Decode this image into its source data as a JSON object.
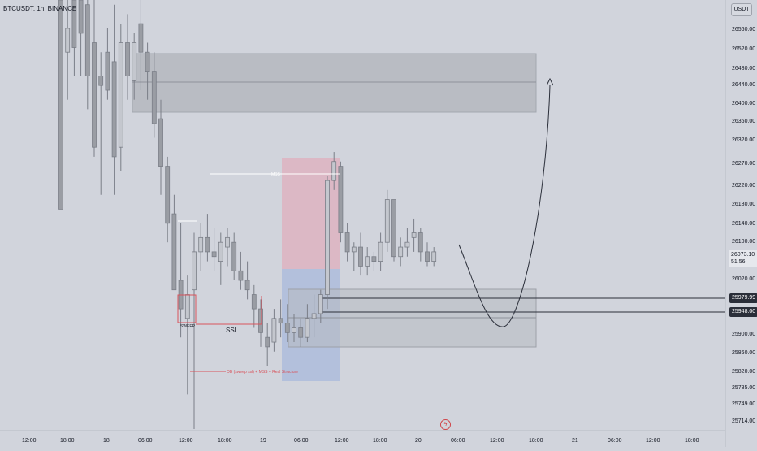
{
  "header": {
    "symbol_line": "BTCUSDT, 1h, BINANCE",
    "currency_button": "USDT"
  },
  "price_axis": {
    "labels": [
      "26560.00",
      "26520.00",
      "26480.00",
      "26440.00",
      "26400.00",
      "26360.00",
      "26320.00",
      "26270.00",
      "26220.00",
      "26180.00",
      "26140.00",
      "26100.00",
      "26020.00",
      "25900.00",
      "25860.00",
      "25820.00",
      "25785.00",
      "25749.00",
      "25714.00"
    ],
    "last_price": "26073.10",
    "countdown": "51:56",
    "tag_upper": "25979.99",
    "tag_lower": "25948.00"
  },
  "time_axis": {
    "labels": [
      "12:00",
      "18:00",
      "18",
      "06:00",
      "12:00",
      "18:00",
      "19",
      "06:00",
      "12:00",
      "18:00",
      "20",
      "06:00",
      "12:00",
      "18:00",
      "21",
      "06:00",
      "12:00",
      "18:00"
    ]
  },
  "annotations": {
    "sweep": "SWEEP",
    "ssl": "SSL",
    "mss": "MSS",
    "ob_note": "OB (sweep ssl) + MSS + Real Structure"
  },
  "colors": {
    "background": "#d1d4dc",
    "candle_fill": "#c4c7ce",
    "candle_border": "#7a7e87",
    "candle_dark": "#9a9da4",
    "risk_zone": "#e6a1b3",
    "reward_zone": "#9fb2dc",
    "annotation_red": "#d9535b",
    "axis_text": "#131722"
  },
  "candles": [
    [
      26800,
      26200,
      26720,
      26280
    ],
    [
      26900,
      26400,
      26500,
      26550
    ],
    [
      26750,
      26450,
      26700,
      26600
    ],
    [
      26700,
      26450,
      26650,
      26580
    ],
    [
      26680,
      26380,
      26600,
      26450
    ],
    [
      26650,
      26280,
      26520,
      26300
    ],
    [
      26500,
      26200,
      26450,
      26430
    ],
    [
      26550,
      26400,
      26500,
      26420
    ],
    [
      26600,
      26200,
      26480,
      26280
    ],
    [
      26560,
      26250,
      26300,
      26520
    ],
    [
      26580,
      26400,
      26520,
      26450
    ],
    [
      26540,
      26400,
      26440,
      26520
    ],
    [
      26700,
      26420,
      26560,
      26500
    ],
    [
      26520,
      26400,
      26500,
      26460
    ],
    [
      26500,
      26320,
      26460,
      26350
    ],
    [
      26400,
      26200,
      26360,
      26260
    ],
    [
      26280,
      26100,
      26260,
      26140
    ],
    [
      26200,
      26010,
      26160,
      26000
    ],
    [
      26140,
      25900,
      26020,
      25960
    ],
    [
      26030,
      25780,
      25940,
      25990
    ],
    [
      26120,
      25700,
      26000,
      26080
    ],
    [
      26140,
      26040,
      26080,
      26110
    ],
    [
      26160,
      26060,
      26110,
      26080
    ],
    [
      26130,
      26040,
      26080,
      26070
    ],
    [
      26120,
      26010,
      26060,
      26100
    ],
    [
      26130,
      26050,
      26090,
      26110
    ],
    [
      26120,
      26020,
      26100,
      26040
    ],
    [
      26080,
      26000,
      26040,
      26020
    ],
    [
      26060,
      25980,
      26020,
      26000
    ],
    [
      26010,
      25920,
      25990,
      25960
    ],
    [
      25980,
      25880,
      25960,
      25910
    ],
    [
      25930,
      25840,
      25900,
      25880
    ],
    [
      25960,
      25870,
      25890,
      25940
    ],
    [
      25980,
      25900,
      25940,
      25930
    ],
    [
      25970,
      25890,
      25930,
      25910
    ],
    [
      25950,
      25890,
      25910,
      25920
    ],
    [
      25940,
      25880,
      25920,
      25900
    ],
    [
      25970,
      25890,
      25900,
      25940
    ],
    [
      25990,
      25900,
      25940,
      25950
    ],
    [
      26000,
      25930,
      25950,
      25990
    ],
    [
      26240,
      25960,
      25990,
      26230
    ],
    [
      26290,
      26210,
      26230,
      26270
    ],
    [
      26270,
      26100,
      26260,
      26120
    ],
    [
      26140,
      26060,
      26120,
      26080
    ],
    [
      26100,
      26040,
      26080,
      26090
    ],
    [
      26120,
      26030,
      26090,
      26050
    ],
    [
      26090,
      26030,
      26050,
      26070
    ],
    [
      26080,
      26040,
      26070,
      26060
    ],
    [
      26120,
      26040,
      26060,
      26100
    ],
    [
      26210,
      26080,
      26100,
      26190
    ],
    [
      26190,
      26060,
      26190,
      26070
    ],
    [
      26110,
      26050,
      26070,
      26090
    ],
    [
      26130,
      26070,
      26090,
      26100
    ],
    [
      26150,
      26080,
      26110,
      26120
    ],
    [
      26130,
      26060,
      26120,
      26080
    ],
    [
      26100,
      26050,
      26080,
      26060
    ],
    [
      26090,
      26050,
      26060,
      26080
    ]
  ]
}
